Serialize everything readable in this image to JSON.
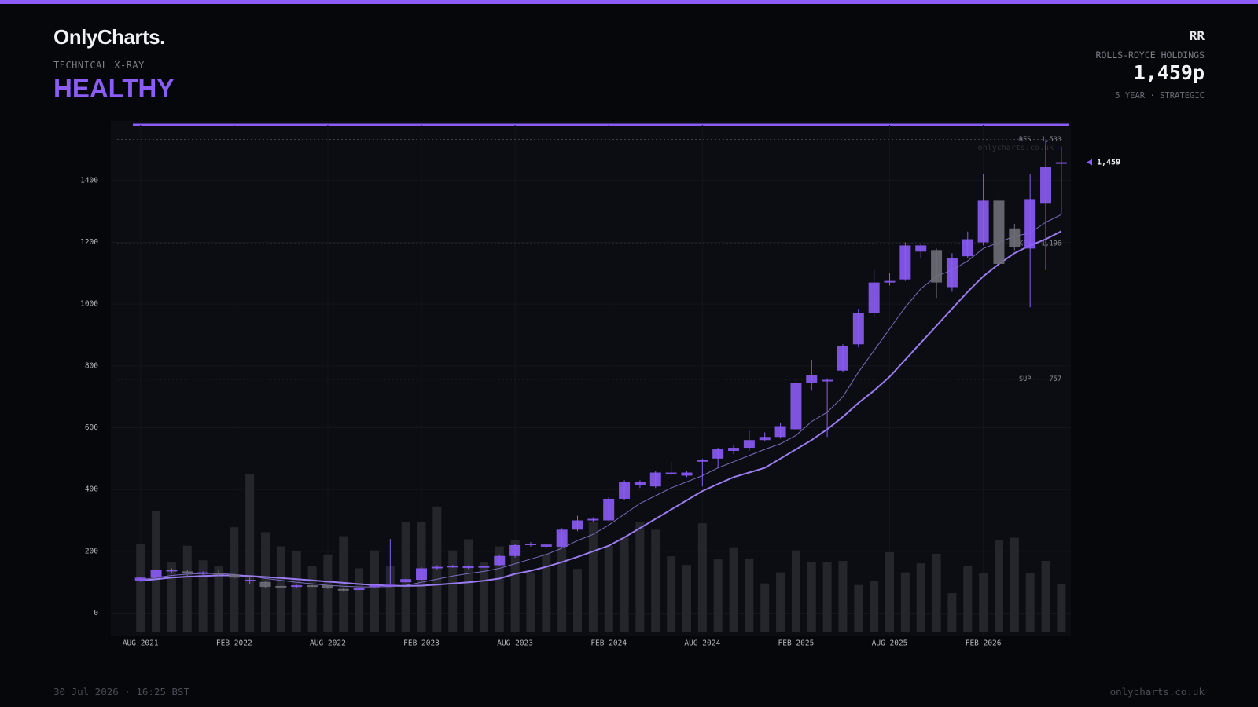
{
  "header": {
    "logo": "OnlyCharts.",
    "kicker": "TECHNICAL X-RAY",
    "status": "HEALTHY",
    "ticker": "RR",
    "company": "ROLLS-ROYCE HOLDINGS",
    "price": "1,459p",
    "horizon": "5 YEAR · STRATEGIC"
  },
  "footer": {
    "timestamp": "30 Jul 2026 · 16:25 BST",
    "site": "onlycharts.co.uk"
  },
  "chart_data": {
    "type": "candlestick",
    "watermark": "onlycharts.co.uk",
    "categories": [
      "AUG 2021",
      null,
      null,
      null,
      null,
      null,
      "FEB 2022",
      null,
      null,
      null,
      null,
      null,
      "AUG 2022",
      null,
      null,
      null,
      null,
      null,
      "FEB 2023",
      null,
      null,
      null,
      null,
      null,
      "AUG 2023",
      null,
      null,
      null,
      null,
      null,
      "FEB 2024",
      null,
      null,
      null,
      null,
      null,
      "AUG 2024",
      null,
      null,
      null,
      null,
      null,
      "FEB 2025",
      null,
      null,
      null,
      null,
      null,
      "AUG 2025",
      null,
      null,
      null,
      null,
      null,
      "FEB 2026",
      null,
      null,
      null,
      null,
      null
    ],
    "open": [
      105,
      115,
      135,
      135,
      128,
      130,
      125,
      105,
      101,
      88,
      85,
      90,
      90,
      78,
      75,
      85,
      90,
      100,
      108,
      145,
      150,
      146,
      148,
      155,
      185,
      220,
      215,
      215,
      270,
      300,
      300,
      370,
      415,
      410,
      450,
      445,
      490,
      500,
      525,
      535,
      560,
      570,
      595,
      745,
      750,
      785,
      870,
      970,
      1070,
      1080,
      1170,
      1175,
      1055,
      1155,
      1200,
      1335,
      1245,
      1180,
      1325,
      1455
    ],
    "high": [
      118,
      145,
      145,
      140,
      135,
      140,
      130,
      115,
      105,
      92,
      92,
      92,
      92,
      80,
      82,
      92,
      240,
      112,
      148,
      155,
      156,
      155,
      155,
      190,
      225,
      230,
      225,
      275,
      315,
      310,
      375,
      430,
      430,
      460,
      490,
      460,
      500,
      535,
      545,
      590,
      585,
      615,
      760,
      820,
      760,
      870,
      985,
      1110,
      1100,
      1200,
      1195,
      1180,
      1165,
      1235,
      1420,
      1375,
      1260,
      1420,
      1530,
      1510
    ],
    "low": [
      102,
      110,
      130,
      120,
      120,
      118,
      110,
      95,
      80,
      82,
      82,
      85,
      78,
      72,
      72,
      83,
      88,
      98,
      105,
      140,
      147,
      143,
      145,
      152,
      180,
      215,
      210,
      210,
      265,
      295,
      298,
      365,
      405,
      405,
      445,
      440,
      410,
      470,
      515,
      525,
      555,
      565,
      590,
      720,
      570,
      780,
      860,
      960,
      1060,
      1075,
      1150,
      1020,
      1040,
      1150,
      1190,
      1080,
      1175,
      990,
      1110,
      1290
    ],
    "close": [
      115,
      140,
      140,
      128,
      132,
      125,
      115,
      108,
      85,
      85,
      90,
      87,
      80,
      75,
      80,
      90,
      92,
      110,
      145,
      150,
      153,
      152,
      152,
      185,
      220,
      225,
      222,
      270,
      300,
      305,
      370,
      425,
      425,
      455,
      455,
      455,
      495,
      530,
      535,
      560,
      570,
      605,
      745,
      770,
      755,
      865,
      970,
      1070,
      1075,
      1190,
      1190,
      1070,
      1150,
      1210,
      1335,
      1130,
      1185,
      1340,
      1445,
      1459
    ],
    "up_color": "#8b5cf6",
    "down_color": "#6e6e78",
    "volume": {
      "color": "#24262c",
      "values": [
        223,
        332,
        166,
        218,
        171,
        153,
        278,
        449,
        262,
        216,
        200,
        153,
        190,
        249,
        145,
        203,
        153,
        294,
        294,
        345,
        203,
        239,
        166,
        216,
        236,
        132,
        192,
        257,
        143,
        296,
        218,
        244,
        296,
        270,
        184,
        156,
        291,
        174,
        213,
        177,
        96,
        132,
        203,
        164,
        166,
        169,
        91,
        104,
        197,
        132,
        161,
        192,
        65,
        153,
        130,
        236,
        244,
        130,
        169,
        94
      ]
    },
    "moving_averages": [
      {
        "color": "#7c6bc0",
        "width": 1,
        "values": [
          108,
          115,
          122,
          126,
          128,
          128,
          125,
          120,
          112,
          106,
          100,
          95,
          90,
          87,
          85,
          85,
          86,
          90,
          100,
          110,
          120,
          128,
          135,
          145,
          160,
          175,
          190,
          210,
          235,
          255,
          285,
          320,
          355,
          380,
          405,
          425,
          445,
          470,
          490,
          510,
          530,
          548,
          575,
          620,
          650,
          700,
          780,
          850,
          920,
          990,
          1050,
          1090,
          1110,
          1140,
          1180,
          1200,
          1220,
          1230,
          1265,
          1290
        ]
      },
      {
        "color": "#9b7cf0",
        "width": 2,
        "values": [
          105,
          110,
          115,
          118,
          120,
          122,
          122,
          120,
          117,
          114,
          110,
          106,
          102,
          98,
          94,
          91,
          89,
          88,
          89,
          92,
          96,
          100,
          105,
          112,
          127,
          137,
          150,
          165,
          182,
          200,
          218,
          245,
          275,
          305,
          335,
          365,
          395,
          418,
          440,
          455,
          470,
          500,
          530,
          560,
          595,
          635,
          680,
          720,
          765,
          820,
          875,
          930,
          985,
          1040,
          1090,
          1130,
          1165,
          1190,
          1210,
          1236
        ]
      }
    ],
    "levels": [
      {
        "name": "RES",
        "value": 1533,
        "label": "1,533"
      },
      {
        "name": "KEY",
        "value": 1196,
        "label": "1,196"
      },
      {
        "name": "SUP",
        "value": 757,
        "label": "757"
      }
    ],
    "last_price": {
      "value": 1459,
      "label": "1,459"
    },
    "ylim": [
      -75,
      1580
    ],
    "yticks": [
      0,
      200,
      400,
      600,
      800,
      1000,
      1200,
      1400
    ],
    "grid": true
  }
}
